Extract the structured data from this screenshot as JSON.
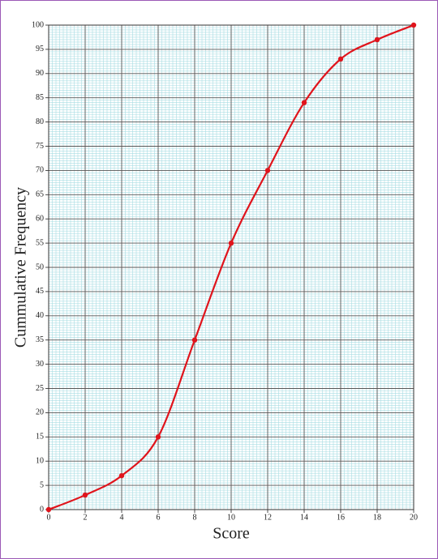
{
  "chart_data": {
    "type": "line",
    "x_label": "Score",
    "y_label": "Cummulative Frequency",
    "x": [
      0,
      2,
      4,
      6,
      8,
      10,
      12,
      14,
      16,
      18,
      20
    ],
    "values": [
      0,
      3,
      7,
      15,
      35,
      55,
      70,
      84,
      93,
      97,
      100
    ],
    "color": "#e0141c",
    "smooth": true,
    "xlim": [
      0,
      20
    ],
    "xticks": [
      0,
      2,
      4,
      6,
      8,
      10,
      12,
      14,
      16,
      18,
      20
    ],
    "ylim": [
      0,
      100
    ],
    "yticks": [
      0,
      5,
      10,
      15,
      20,
      25,
      30,
      35,
      40,
      45,
      50,
      55,
      60,
      65,
      70,
      75,
      80,
      85,
      90,
      95,
      100
    ],
    "grid": true,
    "minor_grid": true
  }
}
